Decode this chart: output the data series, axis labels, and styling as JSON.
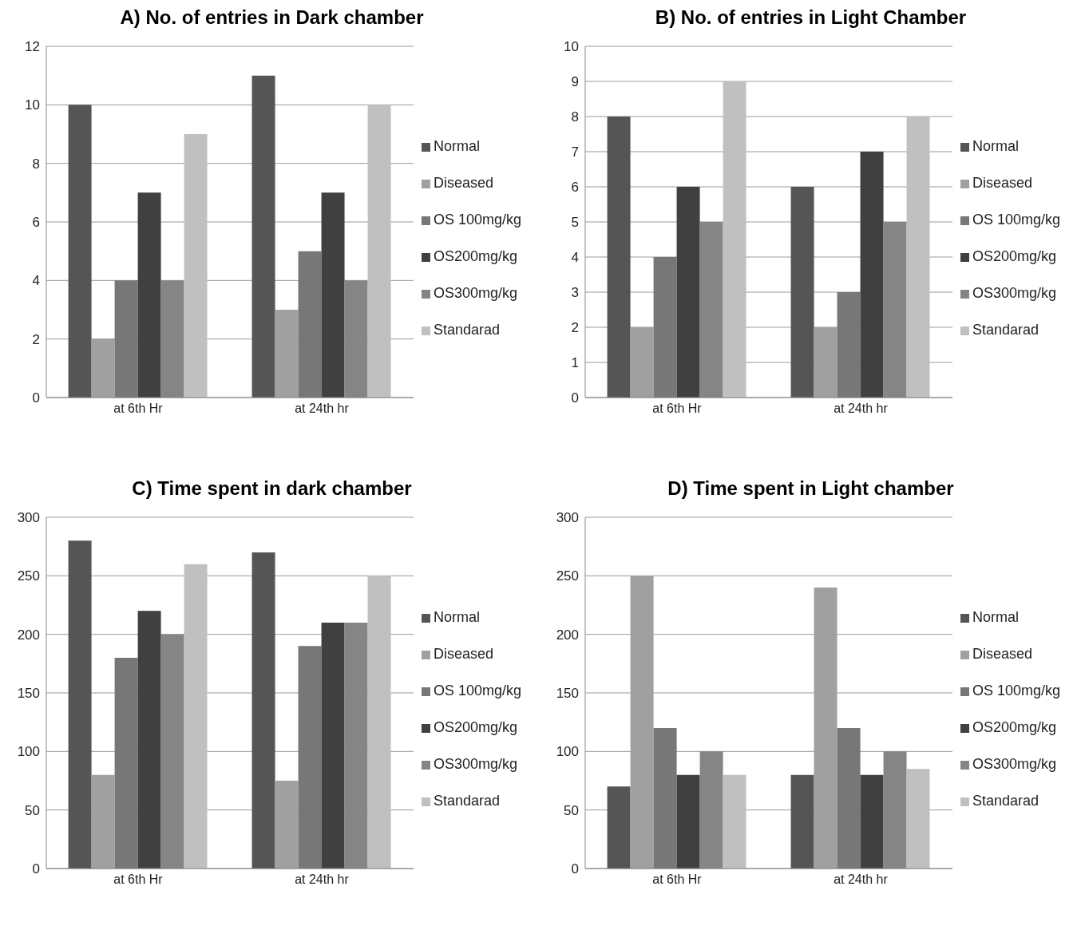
{
  "chart_data": [
    {
      "type": "bar",
      "title": "A) No. of entries in Dark chamber",
      "categories": [
        "at 6th Hr",
        "at 24th hr"
      ],
      "series": [
        {
          "name": "Normal",
          "color": "#555555",
          "values": [
            10,
            11
          ]
        },
        {
          "name": "Diseased",
          "color": "#a0a0a0",
          "values": [
            2,
            3
          ]
        },
        {
          "name": "OS 100mg/kg",
          "color": "#777777",
          "values": [
            4,
            5
          ]
        },
        {
          "name": "OS200mg/kg",
          "color": "#404040",
          "values": [
            7,
            7
          ]
        },
        {
          "name": "OS300mg/kg",
          "color": "#858585",
          "values": [
            4,
            4
          ]
        },
        {
          "name": "Standarad",
          "color": "#c0c0c0",
          "values": [
            9,
            10
          ]
        }
      ],
      "ylim": [
        0,
        12
      ],
      "yticks": [
        0,
        2,
        4,
        6,
        8,
        10,
        12
      ],
      "grid": "y",
      "legend": "right"
    },
    {
      "type": "bar",
      "title": "B) No. of entries in Light Chamber",
      "categories": [
        "at 6th Hr",
        "at 24th hr"
      ],
      "series": [
        {
          "name": "Normal",
          "color": "#555555",
          "values": [
            8,
            6
          ]
        },
        {
          "name": "Diseased",
          "color": "#a0a0a0",
          "values": [
            2,
            2
          ]
        },
        {
          "name": "OS 100mg/kg",
          "color": "#777777",
          "values": [
            4,
            3
          ]
        },
        {
          "name": "OS200mg/kg",
          "color": "#404040",
          "values": [
            6,
            7
          ]
        },
        {
          "name": "OS300mg/kg",
          "color": "#858585",
          "values": [
            5,
            5
          ]
        },
        {
          "name": "Standarad",
          "color": "#c0c0c0",
          "values": [
            9,
            8
          ]
        }
      ],
      "ylim": [
        0,
        10
      ],
      "yticks": [
        0,
        1,
        2,
        3,
        4,
        5,
        6,
        7,
        8,
        9,
        10
      ],
      "grid": "y",
      "legend": "right"
    },
    {
      "type": "bar",
      "title": "C) Time spent in dark chamber",
      "categories": [
        "at 6th Hr",
        "at 24th hr"
      ],
      "series": [
        {
          "name": "Normal",
          "color": "#555555",
          "values": [
            280,
            270
          ]
        },
        {
          "name": "Diseased",
          "color": "#a0a0a0",
          "values": [
            80,
            75
          ]
        },
        {
          "name": "OS 100mg/kg",
          "color": "#777777",
          "values": [
            180,
            190
          ]
        },
        {
          "name": "OS200mg/kg",
          "color": "#404040",
          "values": [
            220,
            210
          ]
        },
        {
          "name": "OS300mg/kg",
          "color": "#858585",
          "values": [
            200,
            210
          ]
        },
        {
          "name": "Standarad",
          "color": "#c0c0c0",
          "values": [
            260,
            250
          ]
        }
      ],
      "ylim": [
        0,
        300
      ],
      "yticks": [
        0,
        50,
        100,
        150,
        200,
        250,
        300
      ],
      "grid": "y",
      "legend": "right"
    },
    {
      "type": "bar",
      "title": "D) Time spent in Light chamber",
      "categories": [
        "at 6th Hr",
        "at 24th hr"
      ],
      "series": [
        {
          "name": "Normal",
          "color": "#555555",
          "values": [
            70,
            80
          ]
        },
        {
          "name": "Diseased",
          "color": "#a0a0a0",
          "values": [
            250,
            240
          ]
        },
        {
          "name": "OS 100mg/kg",
          "color": "#777777",
          "values": [
            120,
            120
          ]
        },
        {
          "name": "OS200mg/kg",
          "color": "#404040",
          "values": [
            80,
            80
          ]
        },
        {
          "name": "OS300mg/kg",
          "color": "#858585",
          "values": [
            100,
            100
          ]
        },
        {
          "name": "Standarad",
          "color": "#c0c0c0",
          "values": [
            80,
            85
          ]
        }
      ],
      "ylim": [
        0,
        300
      ],
      "yticks": [
        0,
        50,
        100,
        150,
        200,
        250,
        300
      ],
      "grid": "y",
      "legend": "right"
    }
  ]
}
